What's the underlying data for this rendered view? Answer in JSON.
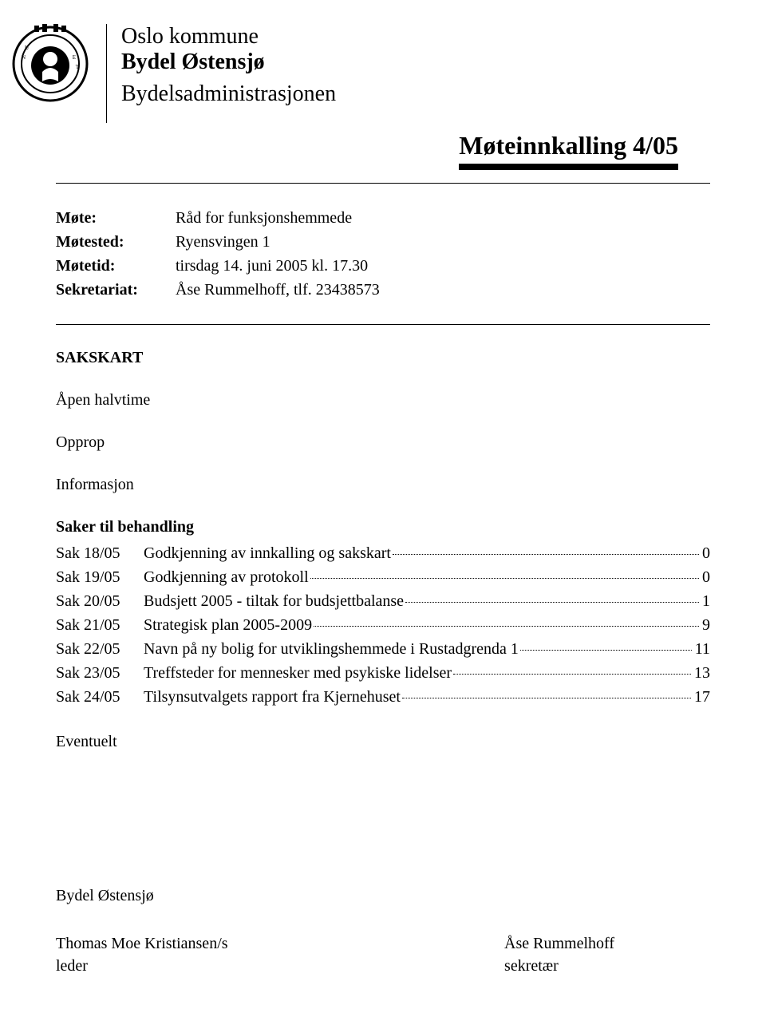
{
  "header": {
    "line1": "Oslo kommune",
    "line2": "Bydel Østensjø",
    "line3": "Bydelsadministrasjonen"
  },
  "document_title": "Møteinnkalling 4/05",
  "meta": {
    "labels": {
      "mote": "Møte:",
      "motested": "Møtested:",
      "motetid": "Møtetid:",
      "sekretariat": "Sekretariat:"
    },
    "values": {
      "mote": "Råd for funksjonshemmede",
      "motested": "Ryensvingen 1",
      "motetid": "tirsdag 14. juni 2005 kl. 17.30",
      "sekretariat": "Åse Rummelhoff, tlf. 23438573"
    }
  },
  "sections": {
    "sakskart": "SAKSKART",
    "apen": "Åpen halvtime",
    "opprop": "Opprop",
    "informasjon": "Informasjon",
    "saker_heading": "Saker til behandling",
    "eventuelt": "Eventuelt"
  },
  "toc": [
    {
      "sak": "Sak 18/05",
      "title": "Godkjenning av innkalling og sakskart",
      "page": "0"
    },
    {
      "sak": "Sak 19/05",
      "title": "Godkjenning av protokoll",
      "page": "0"
    },
    {
      "sak": "Sak 20/05",
      "title": "Budsjett 2005 - tiltak for budsjettbalanse",
      "page": "1"
    },
    {
      "sak": "Sak 21/05",
      "title": "Strategisk plan 2005-2009",
      "page": "9"
    },
    {
      "sak": "Sak 22/05",
      "title": "Navn på ny bolig for utviklingshemmede i Rustadgrenda 1",
      "page": "11"
    },
    {
      "sak": "Sak 23/05",
      "title": "Treffsteder for mennesker med psykiske lidelser",
      "page": "13"
    },
    {
      "sak": "Sak 24/05",
      "title": "Tilsynsutvalgets rapport fra Kjernehuset",
      "page": "17"
    }
  ],
  "footer": {
    "org": "Bydel Østensjø",
    "left_name": "Thomas Moe Kristiansen/s",
    "left_role": "leder",
    "right_name": "Åse Rummelhoff",
    "right_role": "sekretær"
  }
}
